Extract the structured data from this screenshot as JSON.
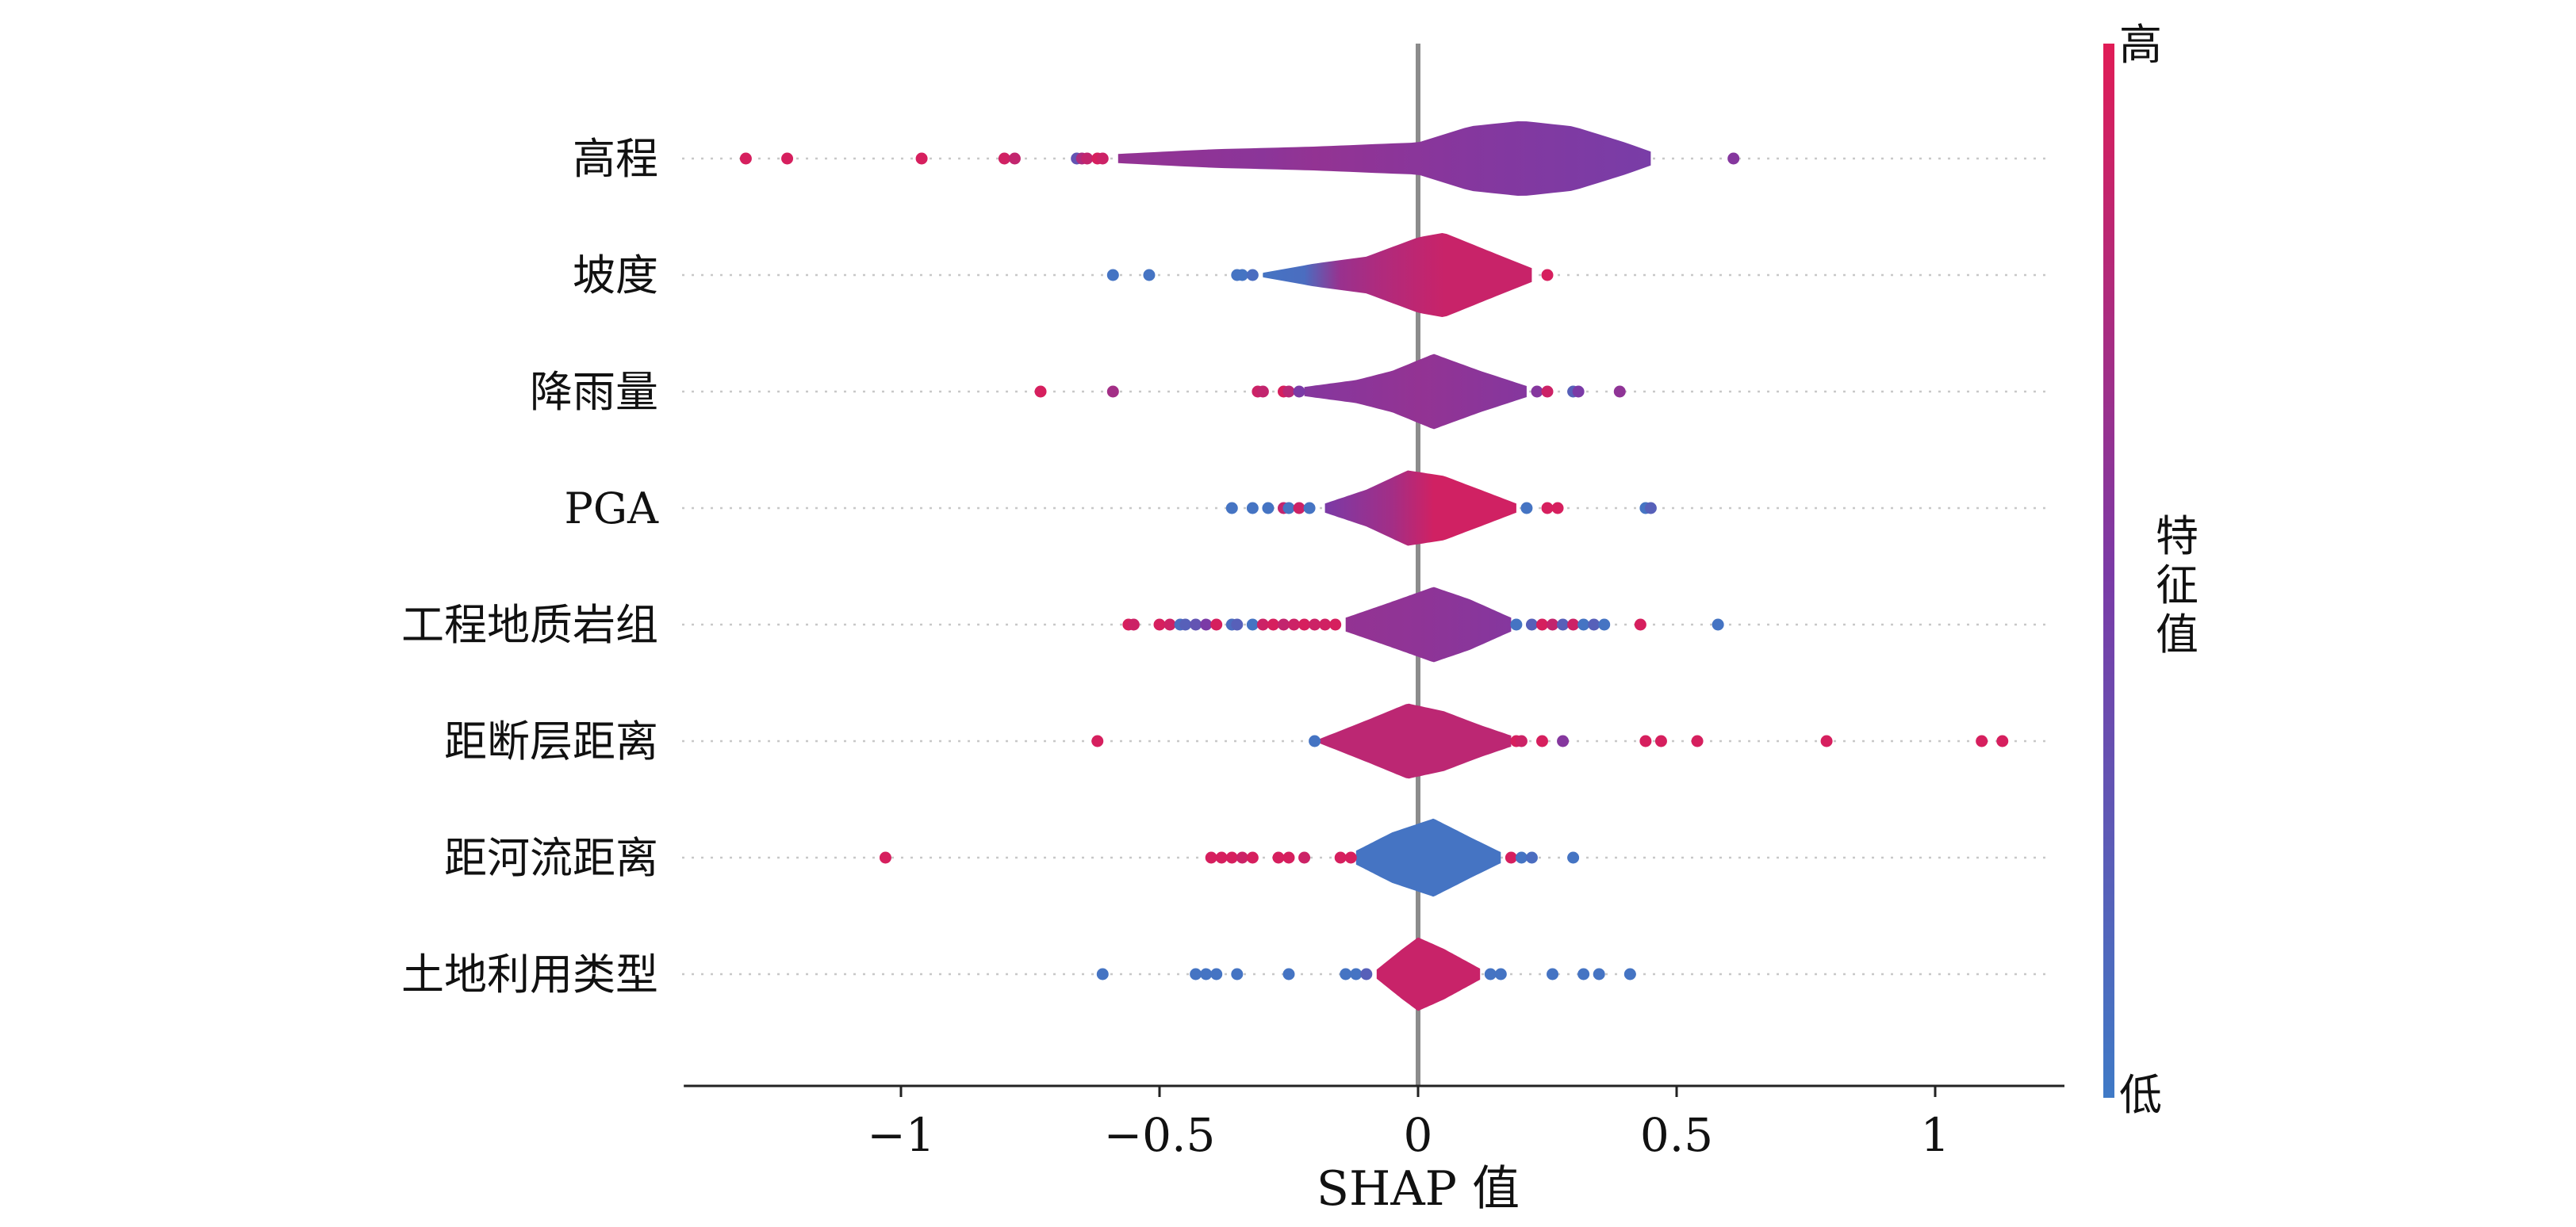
{
  "chart_data": {
    "type": "violin",
    "xlabel": "SHAP 值",
    "xlim": [
      -1.42,
      1.25
    ],
    "x_ticks": [
      {
        "value": -1,
        "label": "−1"
      },
      {
        "value": -0.5,
        "label": "−0.5"
      },
      {
        "value": 0,
        "label": "0"
      },
      {
        "value": 0.5,
        "label": "0.5"
      },
      {
        "value": 1,
        "label": "1"
      }
    ],
    "colorbar": {
      "label": "特征值",
      "high_label": "高",
      "low_label": "低",
      "colors": {
        "low": "#3f7ac6",
        "mid": "#7b3aa6",
        "high": "#e01c56"
      }
    },
    "features": [
      {
        "name": "高程",
        "violin_range": [
          -0.58,
          0.45
        ],
        "density": [
          [
            -0.58,
            0.1
          ],
          [
            -0.4,
            0.2
          ],
          [
            -0.2,
            0.26
          ],
          [
            0,
            0.35
          ],
          [
            0.1,
            0.7
          ],
          [
            0.2,
            0.82
          ],
          [
            0.3,
            0.7
          ],
          [
            0.4,
            0.35
          ],
          [
            0.45,
            0.15
          ]
        ],
        "violin_color": [
          [
            -0.58,
            0.62
          ],
          [
            -0.3,
            0.58
          ],
          [
            -0.2,
            0.62
          ],
          [
            0.1,
            0.55
          ],
          [
            0.45,
            0.48
          ]
        ],
        "points": [
          [
            -1.3,
            0.95
          ],
          [
            -1.22,
            0.95
          ],
          [
            -0.96,
            0.95
          ],
          [
            -0.8,
            0.92
          ],
          [
            -0.78,
            0.85
          ],
          [
            -0.66,
            0.3
          ],
          [
            -0.65,
            0.75
          ],
          [
            -0.64,
            0.85
          ],
          [
            -0.62,
            0.95
          ],
          [
            -0.61,
            0.9
          ],
          [
            0.61,
            0.55
          ]
        ]
      },
      {
        "name": "坡度",
        "violin_range": [
          -0.3,
          0.22
        ],
        "density": [
          [
            -0.3,
            0.05
          ],
          [
            -0.2,
            0.25
          ],
          [
            -0.1,
            0.4
          ],
          [
            0,
            0.82
          ],
          [
            0.05,
            0.92
          ],
          [
            0.12,
            0.6
          ],
          [
            0.22,
            0.15
          ]
        ],
        "violin_color": [
          [
            -0.3,
            0.05
          ],
          [
            -0.22,
            0.1
          ],
          [
            -0.15,
            0.65
          ],
          [
            -0.08,
            0.75
          ],
          [
            0.05,
            0.88
          ],
          [
            0.22,
            0.88
          ]
        ],
        "points": [
          [
            -0.59,
            0.05
          ],
          [
            -0.52,
            0.05
          ],
          [
            -0.35,
            0.05
          ],
          [
            -0.34,
            0.05
          ],
          [
            -0.32,
            0.1
          ],
          [
            0.25,
            0.95
          ]
        ]
      },
      {
        "name": "降雨量",
        "violin_range": [
          -0.22,
          0.21
        ],
        "density": [
          [
            -0.22,
            0.1
          ],
          [
            -0.12,
            0.25
          ],
          [
            -0.05,
            0.45
          ],
          [
            0.03,
            0.82
          ],
          [
            0.12,
            0.45
          ],
          [
            0.21,
            0.12
          ]
        ],
        "violin_color": [
          [
            -0.22,
            0.55
          ],
          [
            0,
            0.62
          ],
          [
            0.21,
            0.55
          ]
        ],
        "points": [
          [
            -0.73,
            0.95
          ],
          [
            -0.59,
            0.7
          ],
          [
            -0.31,
            0.9
          ],
          [
            -0.3,
            0.85
          ],
          [
            -0.26,
            0.95
          ],
          [
            -0.25,
            0.8
          ],
          [
            -0.23,
            0.5
          ],
          [
            0.23,
            0.55
          ],
          [
            0.25,
            0.9
          ],
          [
            0.3,
            0.2
          ],
          [
            0.31,
            0.5
          ],
          [
            0.39,
            0.6
          ]
        ]
      },
      {
        "name": "PGA",
        "violin_range": [
          -0.18,
          0.19
        ],
        "density": [
          [
            -0.18,
            0.1
          ],
          [
            -0.1,
            0.4
          ],
          [
            -0.02,
            0.82
          ],
          [
            0.05,
            0.7
          ],
          [
            0.12,
            0.4
          ],
          [
            0.19,
            0.1
          ]
        ],
        "violin_color": [
          [
            -0.18,
            0.5
          ],
          [
            -0.05,
            0.7
          ],
          [
            0.03,
            0.92
          ],
          [
            0.19,
            0.92
          ]
        ],
        "points": [
          [
            -0.36,
            0.05
          ],
          [
            -0.32,
            0.05
          ],
          [
            -0.29,
            0.05
          ],
          [
            -0.26,
            0.85
          ],
          [
            -0.25,
            0.05
          ],
          [
            -0.23,
            0.9
          ],
          [
            -0.21,
            0.05
          ],
          [
            0.21,
            0.05
          ],
          [
            0.25,
            0.95
          ],
          [
            0.27,
            0.95
          ],
          [
            0.44,
            0.05
          ],
          [
            0.45,
            0.2
          ]
        ]
      },
      {
        "name": "工程地质岩组",
        "violin_range": [
          -0.14,
          0.18
        ],
        "density": [
          [
            -0.14,
            0.15
          ],
          [
            -0.05,
            0.5
          ],
          [
            0.03,
            0.82
          ],
          [
            0.1,
            0.55
          ],
          [
            0.18,
            0.15
          ]
        ],
        "violin_color": [
          [
            -0.14,
            0.62
          ],
          [
            0,
            0.6
          ],
          [
            0.18,
            0.55
          ]
        ],
        "points": [
          [
            -0.56,
            0.95
          ],
          [
            -0.55,
            0.9
          ],
          [
            -0.5,
            0.95
          ],
          [
            -0.48,
            0.9
          ],
          [
            -0.46,
            0.1
          ],
          [
            -0.45,
            0.2
          ],
          [
            -0.43,
            0.3
          ],
          [
            -0.41,
            0.5
          ],
          [
            -0.39,
            0.95
          ],
          [
            -0.36,
            0.1
          ],
          [
            -0.35,
            0.2
          ],
          [
            -0.32,
            0.05
          ],
          [
            -0.3,
            0.9
          ],
          [
            -0.28,
            0.95
          ],
          [
            -0.26,
            0.85
          ],
          [
            -0.24,
            0.9
          ],
          [
            -0.22,
            0.95
          ],
          [
            -0.2,
            0.9
          ],
          [
            -0.18,
            0.92
          ],
          [
            -0.16,
            0.95
          ],
          [
            0.19,
            0.05
          ],
          [
            0.22,
            0.2
          ],
          [
            0.24,
            0.95
          ],
          [
            0.26,
            0.85
          ],
          [
            0.28,
            0.2
          ],
          [
            0.3,
            0.9
          ],
          [
            0.32,
            0.05
          ],
          [
            0.34,
            0.2
          ],
          [
            0.36,
            0.05
          ],
          [
            0.43,
            0.95
          ],
          [
            0.58,
            0.05
          ]
        ]
      },
      {
        "name": "距断层距离",
        "violin_range": [
          -0.19,
          0.18
        ],
        "density": [
          [
            -0.19,
            0.05
          ],
          [
            -0.1,
            0.45
          ],
          [
            -0.02,
            0.82
          ],
          [
            0.05,
            0.65
          ],
          [
            0.12,
            0.35
          ],
          [
            0.18,
            0.12
          ]
        ],
        "violin_color": [
          [
            -0.19,
            0.82
          ],
          [
            0.18,
            0.82
          ]
        ],
        "points": [
          [
            -0.62,
            0.95
          ],
          [
            -0.2,
            0.05
          ],
          [
            0.19,
            0.95
          ],
          [
            0.2,
            0.9
          ],
          [
            0.24,
            0.95
          ],
          [
            0.28,
            0.55
          ],
          [
            0.44,
            0.95
          ],
          [
            0.47,
            0.95
          ],
          [
            0.54,
            0.95
          ],
          [
            0.79,
            0.95
          ],
          [
            1.09,
            0.95
          ],
          [
            1.13,
            0.95
          ]
        ]
      },
      {
        "name": "距河流距离",
        "violin_range": [
          -0.12,
          0.16
        ],
        "density": [
          [
            -0.12,
            0.15
          ],
          [
            -0.05,
            0.55
          ],
          [
            0.03,
            0.85
          ],
          [
            0.1,
            0.45
          ],
          [
            0.16,
            0.12
          ]
        ],
        "violin_color": [
          [
            -0.12,
            0.05
          ],
          [
            0.16,
            0.05
          ]
        ],
        "points": [
          [
            -1.03,
            0.95
          ],
          [
            -0.4,
            0.95
          ],
          [
            -0.38,
            0.95
          ],
          [
            -0.36,
            0.95
          ],
          [
            -0.34,
            0.9
          ],
          [
            -0.32,
            0.95
          ],
          [
            -0.27,
            0.95
          ],
          [
            -0.25,
            0.95
          ],
          [
            -0.22,
            0.9
          ],
          [
            -0.15,
            0.95
          ],
          [
            -0.13,
            0.95
          ],
          [
            0.18,
            0.95
          ],
          [
            0.2,
            0.05
          ],
          [
            0.22,
            0.1
          ],
          [
            0.3,
            0.05
          ]
        ]
      },
      {
        "name": "土地利用类型",
        "violin_range": [
          -0.08,
          0.12
        ],
        "density": [
          [
            -0.08,
            0.1
          ],
          [
            -0.03,
            0.55
          ],
          [
            0,
            0.8
          ],
          [
            0.05,
            0.55
          ],
          [
            0.12,
            0.12
          ]
        ],
        "violin_color": [
          [
            -0.08,
            0.88
          ],
          [
            0.12,
            0.88
          ]
        ],
        "points": [
          [
            -0.61,
            0.05
          ],
          [
            -0.43,
            0.05
          ],
          [
            -0.41,
            0.05
          ],
          [
            -0.39,
            0.05
          ],
          [
            -0.35,
            0.05
          ],
          [
            -0.25,
            0.05
          ],
          [
            -0.14,
            0.05
          ],
          [
            -0.12,
            0.05
          ],
          [
            -0.1,
            0.2
          ],
          [
            0.14,
            0.05
          ],
          [
            0.16,
            0.05
          ],
          [
            0.26,
            0.05
          ],
          [
            0.32,
            0.05
          ],
          [
            0.35,
            0.05
          ],
          [
            0.41,
            0.05
          ]
        ]
      }
    ]
  }
}
